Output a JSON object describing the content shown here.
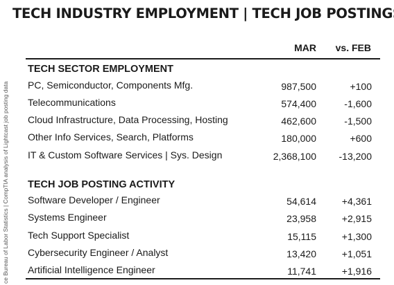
{
  "title": "TECH INDUSTRY EMPLOYMENT | TECH JOB POSTINGS",
  "source_note": "ce Bureau of Labor Statistics | CompTIA analysis of Lightcast job posting data",
  "columns": {
    "mar": "MAR",
    "feb": "vs. FEB"
  },
  "employment": {
    "heading": "TECH SECTOR EMPLOYMENT",
    "rows": [
      {
        "label": "PC, Semiconductor, Components Mfg.",
        "mar": "987,500",
        "feb": "+100"
      },
      {
        "label": "Telecommunications",
        "mar": "574,400",
        "feb": "-1,600"
      },
      {
        "label": "Cloud Infrastructure, Data Processing, Hosting",
        "mar": "462,600",
        "feb": "-1,500"
      },
      {
        "label": "Other Info Services, Search, Platforms",
        "mar": "180,000",
        "feb": "+600"
      },
      {
        "label": "IT & Custom Software Services | Sys. Design",
        "mar": "2,368,100",
        "feb": "-13,200"
      }
    ]
  },
  "postings": {
    "heading": "TECH JOB POSTING ACTIVITY",
    "rows": [
      {
        "label": "Software Developer / Engineer",
        "mar": "54,614",
        "feb": "+4,361"
      },
      {
        "label": "Systems Engineer",
        "mar": "23,958",
        "feb": "+2,915"
      },
      {
        "label": "Tech Support Specialist",
        "mar": "15,115",
        "feb": "+1,300"
      },
      {
        "label": "Cybersecurity Engineer / Analyst",
        "mar": "13,420",
        "feb": "+1,051"
      },
      {
        "label": "Artificial Intelligence Engineer",
        "mar": "11,741",
        "feb": "+1,916"
      }
    ]
  }
}
